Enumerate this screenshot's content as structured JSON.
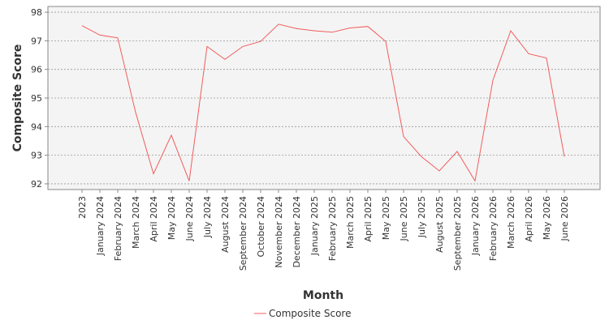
{
  "chart_data": {
    "type": "line",
    "title": "",
    "xlabel": "Month",
    "ylabel": "Composite Score",
    "ylim": [
      91.8,
      98.2
    ],
    "yticks": [
      92,
      93,
      94,
      95,
      96,
      97,
      98
    ],
    "grid": true,
    "legend_position": "bottom-center",
    "categories": [
      "2023",
      "January 2024",
      "February 2024",
      "March 2024",
      "April 2024",
      "May 2024",
      "June 2024",
      "July 2024",
      "August 2024",
      "September 2024",
      "October 2024",
      "November 2024",
      "December 2024",
      "January 2025",
      "February 2025",
      "March 2025",
      "April 2025",
      "May 2025",
      "June 2025",
      "July 2025",
      "August 2025",
      "September 2025",
      "January 2026",
      "February 2026",
      "March 2026",
      "April 2026",
      "May 2026",
      "June 2026"
    ],
    "series": [
      {
        "name": "Composite Score",
        "color": "#f25c5c",
        "values": [
          97.53,
          97.2,
          97.1,
          94.5,
          92.35,
          93.7,
          92.1,
          96.8,
          96.35,
          96.8,
          96.98,
          97.58,
          97.43,
          97.35,
          97.3,
          97.45,
          97.5,
          96.98,
          93.65,
          92.95,
          92.45,
          93.13,
          92.1,
          95.62,
          97.35,
          96.55,
          96.4,
          92.95
        ]
      }
    ]
  }
}
